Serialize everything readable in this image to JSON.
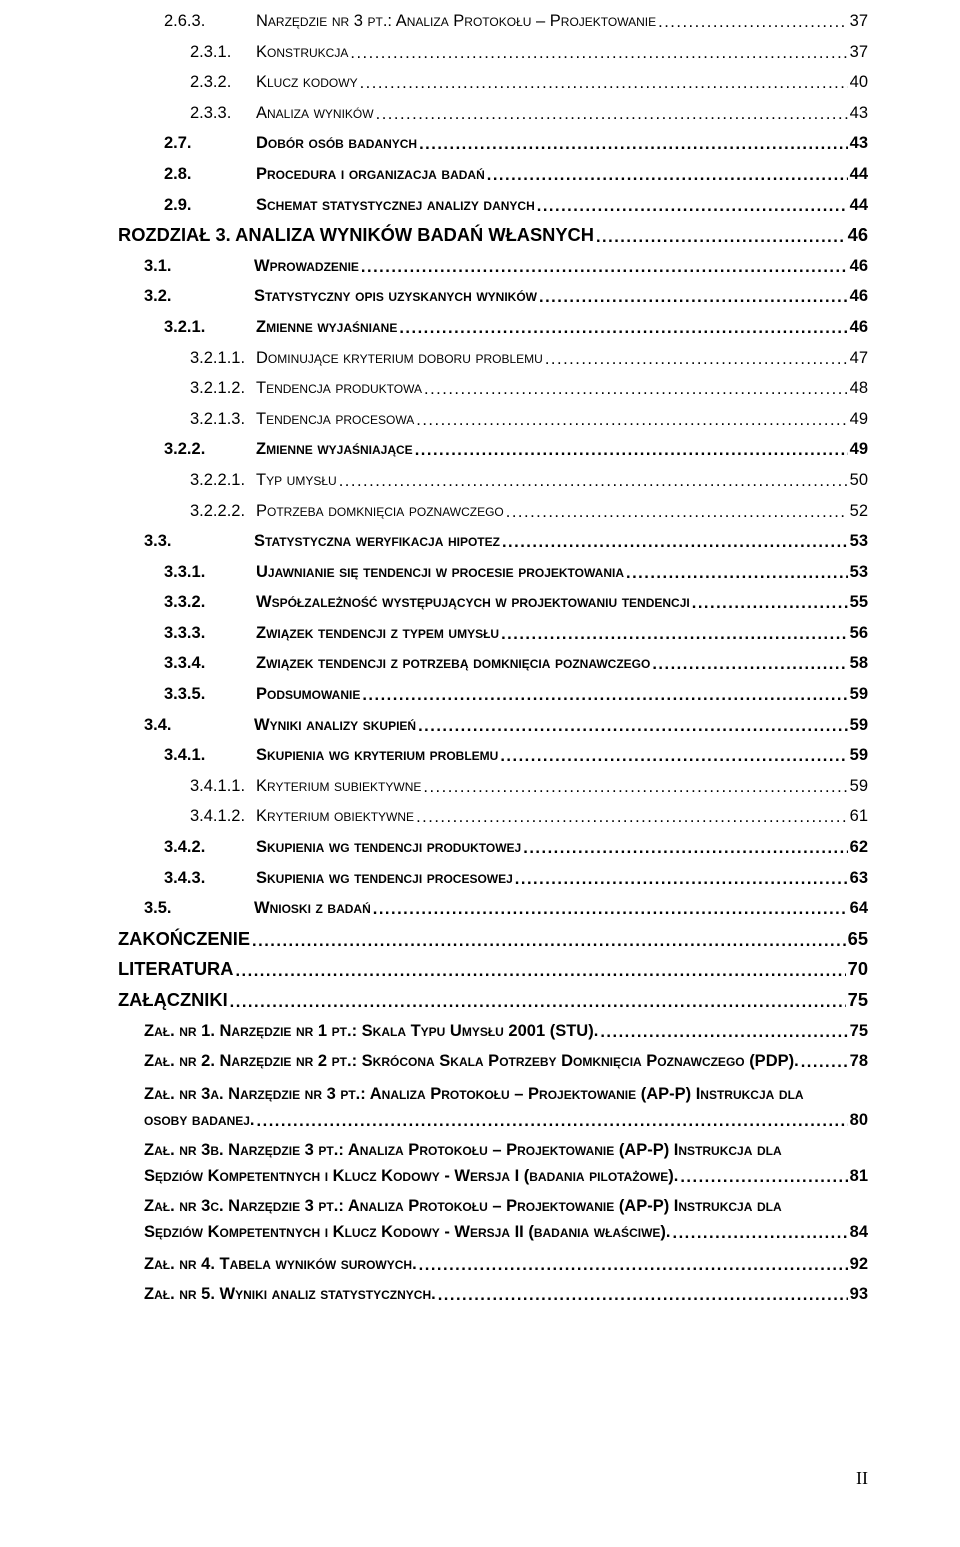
{
  "entries": [
    {
      "lvl": 3,
      "num": "2.6.3.",
      "title": "Narzędzie nr 3 pt.: Analiza Protokołu – Projektowanie",
      "page": "37",
      "sc": true
    },
    {
      "lvl": 4,
      "num": "2.3.1.",
      "title": "Konstrukcja",
      "page": "37",
      "sc": true
    },
    {
      "lvl": 4,
      "num": "2.3.2.",
      "title": "Klucz kodowy",
      "page": "40",
      "sc": true
    },
    {
      "lvl": 4,
      "num": "2.3.3.",
      "title": "Analiza wyników",
      "page": "43",
      "sc": true
    },
    {
      "lvl": 3,
      "num": "2.7.",
      "title": "Dobór osób badanych",
      "page": "43",
      "sc": true,
      "bold": true
    },
    {
      "lvl": 3,
      "num": "2.8.",
      "title": "Procedura i organizacja badań",
      "page": "44",
      "sc": true,
      "bold": true
    },
    {
      "lvl": 3,
      "num": "2.9.",
      "title": "Schemat statystycznej analizy danych",
      "page": "44",
      "sc": true,
      "bold": true
    },
    {
      "lvl": 1,
      "title": "ROZDZIAŁ 3. ANALIZA WYNIKÓW BADAŃ WŁASNYCH",
      "page": "46",
      "bold": true
    },
    {
      "lvl": 2,
      "num": "3.1.",
      "title": "Wprowadzenie",
      "page": "46",
      "sc": true,
      "bold": true
    },
    {
      "lvl": 2,
      "num": "3.2.",
      "title": "Statystyczny opis uzyskanych wyników",
      "page": "46",
      "sc": true,
      "bold": true
    },
    {
      "lvl": 3,
      "num": "3.2.1.",
      "title": "Zmienne wyjaśniane",
      "page": "46",
      "sc": true,
      "bold": true
    },
    {
      "lvl": 4,
      "num": "3.2.1.1.",
      "title": "Dominujące kryterium doboru problemu",
      "page": "47",
      "sc": true
    },
    {
      "lvl": 4,
      "num": "3.2.1.2.",
      "title": "Tendencja produktowa",
      "page": "48",
      "sc": true
    },
    {
      "lvl": 4,
      "num": "3.2.1.3.",
      "title": "Tendencja procesowa",
      "page": "49",
      "sc": true
    },
    {
      "lvl": 3,
      "num": "3.2.2.",
      "title": "Zmienne wyjaśniające",
      "page": "49",
      "sc": true,
      "bold": true
    },
    {
      "lvl": 4,
      "num": "3.2.2.1.",
      "title": "Typ umysłu",
      "page": "50",
      "sc": true
    },
    {
      "lvl": 4,
      "num": "3.2.2.2.",
      "title": "Potrzeba domknięcia poznawczego",
      "page": "52",
      "sc": true
    },
    {
      "lvl": 2,
      "num": "3.3.",
      "title": "Statystyczna weryfikacja hipotez",
      "page": "53",
      "sc": true,
      "bold": true
    },
    {
      "lvl": 3,
      "num": "3.3.1.",
      "title": "Ujawnianie się tendencji w procesie projektowania",
      "page": "53",
      "sc": true,
      "bold": true
    },
    {
      "lvl": 3,
      "num": "3.3.2.",
      "title": "Współzależność występujących w projektowaniu tendencji",
      "page": "55",
      "sc": true,
      "bold": true
    },
    {
      "lvl": 3,
      "num": "3.3.3.",
      "title": "Związek tendencji z typem umysłu",
      "page": "56",
      "sc": true,
      "bold": true
    },
    {
      "lvl": 3,
      "num": "3.3.4.",
      "title": "Związek tendencji z potrzebą domknięcia poznawczego",
      "page": "58",
      "sc": true,
      "bold": true
    },
    {
      "lvl": 3,
      "num": "3.3.5.",
      "title": "Podsumowanie",
      "page": "59",
      "sc": true,
      "bold": true
    },
    {
      "lvl": 2,
      "num": "3.4.",
      "title": "Wyniki analizy skupień",
      "page": "59",
      "sc": true,
      "bold": true
    },
    {
      "lvl": 3,
      "num": "3.4.1.",
      "title": "Skupienia wg kryterium problemu",
      "page": "59",
      "sc": true,
      "bold": true
    },
    {
      "lvl": 4,
      "num": "3.4.1.1.",
      "title": "Kryterium subiektywne",
      "page": "59",
      "sc": true
    },
    {
      "lvl": 4,
      "num": "3.4.1.2.",
      "title": "Kryterium obiektywne",
      "page": "61",
      "sc": true
    },
    {
      "lvl": 3,
      "num": "3.4.2.",
      "title": "Skupienia wg tendencji produktowej",
      "page": "62",
      "sc": true,
      "bold": true
    },
    {
      "lvl": 3,
      "num": "3.4.3.",
      "title": "Skupienia wg tendencji procesowej",
      "page": "63",
      "sc": true,
      "bold": true
    },
    {
      "lvl": 2,
      "num": "3.5.",
      "title": "Wnioski z badań",
      "page": "64",
      "sc": true,
      "bold": true
    },
    {
      "lvl": 1,
      "title": "ZAKOŃCZENIE",
      "page": "65",
      "bold": true
    },
    {
      "lvl": 1,
      "title": "LITERATURA",
      "page": "70",
      "bold": true
    },
    {
      "lvl": 1,
      "title": "ZAŁĄCZNIKI",
      "page": "75",
      "bold": true
    },
    {
      "lvl": 2,
      "title": "Zał. nr 1.  Narzędzie nr 1 pt.: Skala Typu Umysłu 2001 (STU).",
      "page": "75",
      "sc": true,
      "bold": true,
      "nonum": true
    },
    {
      "lvl": 2,
      "title": "Zał. nr 2.  Narzędzie nr 2 pt.: Skrócona Skala Potrzeby Domknięcia Poznawczego (PDP).",
      "page": "78",
      "sc": true,
      "bold": true,
      "nonum": true
    }
  ],
  "wrapEntries": [
    {
      "lines": [
        "Zał. nr 3a. Narzędzie nr 3 pt.: Analiza Protokołu – Projektowanie (AP-P) Instrukcja dla"
      ],
      "last": "osoby badanej.",
      "page": "80"
    },
    {
      "lines": [
        "Zał. nr 3b. Narzędzie 3 pt.: Analiza Protokołu – Projektowanie (AP-P) Instrukcja dla"
      ],
      "last": "Sędziów Kompetentnych i Klucz Kodowy - Wersja I (badania pilotażowe).",
      "page": "81"
    },
    {
      "lines": [
        "Zał. nr 3c. Narzędzie 3 pt.: Analiza Protokołu – Projektowanie (AP-P) Instrukcja dla"
      ],
      "last": "Sędziów Kompetentnych i Klucz Kodowy - Wersja II (badania właściwe).",
      "page": "84"
    }
  ],
  "tailEntries": [
    {
      "lvl": 2,
      "title": "Zał. nr 4.   Tabela wyników surowych.",
      "page": "92",
      "sc": true,
      "bold": true,
      "nonum": true
    },
    {
      "lvl": 2,
      "title": "Zał. nr 5.   Wyniki analiz statystycznych.",
      "page": "93",
      "sc": true,
      "bold": true,
      "nonum": true
    }
  ],
  "pageRoman": "II"
}
